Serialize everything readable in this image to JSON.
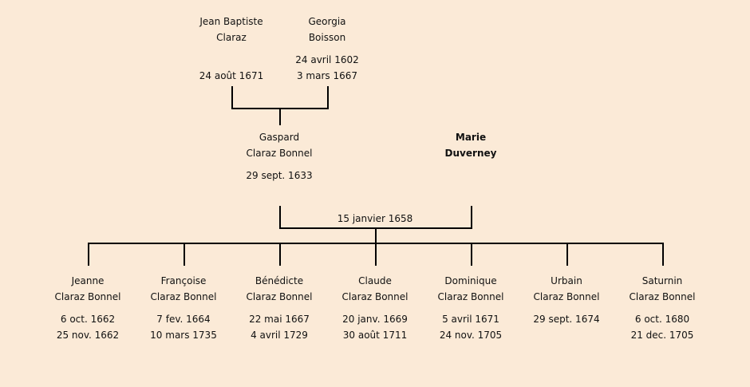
{
  "grandparents": [
    {
      "first": "Jean Baptiste",
      "last": "Claraz",
      "birth": "",
      "death": "24 août 1671"
    },
    {
      "first": "Georgia",
      "last": "Boisson",
      "birth": "24 avril 1602",
      "death": "3 mars 1667"
    }
  ],
  "father": {
    "first": "Gaspard",
    "last": "Claraz Bonnel",
    "birth": "29 sept. 1633"
  },
  "mother": {
    "first": "Marie",
    "last": "Duverney"
  },
  "marriage_date": "15 janvier 1658",
  "children": [
    {
      "first": "Jeanne",
      "last": "Claraz Bonnel",
      "birth": "6 oct. 1662",
      "death": "25 nov. 1662"
    },
    {
      "first": "Françoise",
      "last": "Claraz Bonnel",
      "birth": "7 fev. 1664",
      "death": "10 mars 1735"
    },
    {
      "first": "Bénédicte",
      "last": "Claraz Bonnel",
      "birth": "22 mai 1667",
      "death": "4 avril 1729"
    },
    {
      "first": "Claude",
      "last": "Claraz Bonnel",
      "birth": "20 janv. 1669",
      "death": "30 août 1711"
    },
    {
      "first": "Dominique",
      "last": "Claraz Bonnel",
      "birth": "5 avril 1671",
      "death": "24 nov. 1705"
    },
    {
      "first": "Urbain",
      "last": "Claraz Bonnel",
      "birth": "29 sept. 1674",
      "death": ""
    },
    {
      "first": "Saturnin",
      "last": "Claraz Bonnel",
      "birth": "6 oct. 1680",
      "death": "21 dec. 1705"
    }
  ]
}
